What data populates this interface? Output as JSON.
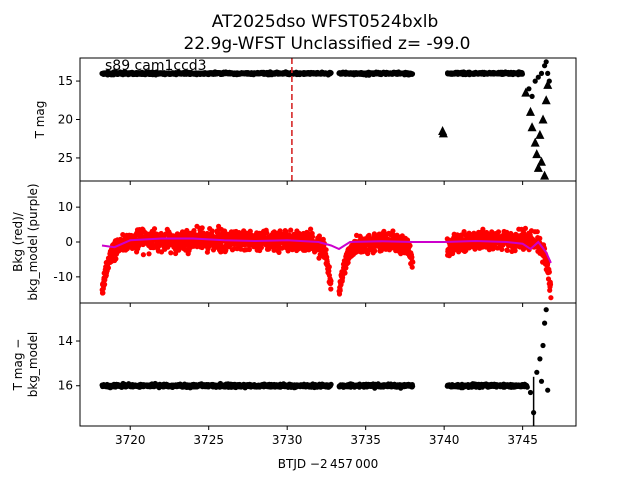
{
  "title_line1": "AT2025dso  WFST0524bxlb",
  "title_line2": "22.9g-WFST Unclassified z= -99.0",
  "annotation": "s89 cam1ccd3",
  "xlabel": "BTJD −2 457 000",
  "colors": {
    "red": "#ff0000",
    "purple": "#cc00cc",
    "black": "#000000",
    "marker_line": "#d62728"
  },
  "chart_data": [
    {
      "type": "scatter",
      "panel": "top",
      "ylabel": "T mag",
      "ylim": [
        28,
        12
      ],
      "yticks": [
        15,
        20,
        25
      ],
      "xlim": [
        3716.8,
        3748.4
      ],
      "vline_x": 3730.3,
      "segments": [
        {
          "x0": 3718.2,
          "x1": 3732.8,
          "y": 14.0,
          "scatter": 0.25
        },
        {
          "x0": 3733.3,
          "x1": 3738.0,
          "y": 14.0,
          "scatter": 0.25
        },
        {
          "x0": 3740.2,
          "x1": 3745.0,
          "y": 14.0,
          "scatter": 0.25
        }
      ],
      "upper_limits": [
        {
          "x": 3739.9,
          "y": 21.5
        },
        {
          "x": 3739.95,
          "y": 21.8
        },
        {
          "x": 3745.2,
          "y": 16.5
        },
        {
          "x": 3745.5,
          "y": 19.0
        },
        {
          "x": 3745.6,
          "y": 21.0
        },
        {
          "x": 3745.8,
          "y": 23.0
        },
        {
          "x": 3745.9,
          "y": 24.5
        },
        {
          "x": 3746.0,
          "y": 26.3
        },
        {
          "x": 3746.1,
          "y": 22.0
        },
        {
          "x": 3746.2,
          "y": 25.5
        },
        {
          "x": 3746.3,
          "y": 20.0
        },
        {
          "x": 3746.4,
          "y": 27.3
        },
        {
          "x": 3746.5,
          "y": 17.5
        },
        {
          "x": 3746.6,
          "y": 15.5
        }
      ],
      "tail_points": [
        {
          "x": 3745.4,
          "y": 16.0
        },
        {
          "x": 3745.6,
          "y": 17.0
        },
        {
          "x": 3745.8,
          "y": 15.0
        },
        {
          "x": 3746.0,
          "y": 14.5
        },
        {
          "x": 3746.2,
          "y": 14.0
        },
        {
          "x": 3746.4,
          "y": 13.0
        },
        {
          "x": 3746.5,
          "y": 12.5
        },
        {
          "x": 3746.6,
          "y": 14.0
        },
        {
          "x": 3746.7,
          "y": 15.0
        }
      ]
    },
    {
      "type": "scatter",
      "panel": "middle",
      "ylabel": "Bkg (red)/\nbkg_model (purple)",
      "ylim": [
        -17.5,
        17.5
      ],
      "yticks": [
        10,
        0,
        -10
      ],
      "xlim": [
        3716.8,
        3748.4
      ],
      "series": [
        {
          "name": "Bkg",
          "color": "#ff0000",
          "segments": [
            {
              "x0": 3718.2,
              "x1": 3732.8,
              "center": 0.5,
              "spread": 5.0,
              "rise_dip": -15.0,
              "end_dip": -14.0
            },
            {
              "x0": 3733.3,
              "x1": 3738.0,
              "center": 0.0,
              "spread": 4.5,
              "rise_dip": -15.0,
              "end_dip": -5.0
            },
            {
              "x0": 3740.2,
              "x1": 3746.8,
              "center": 0.5,
              "spread": 4.5,
              "rise_dip": -3.0,
              "end_dip": -14.0
            }
          ]
        },
        {
          "name": "bkg_model",
          "color": "#cc00cc",
          "x": [
            3718.2,
            3719.0,
            3720.0,
            3722.0,
            3724.0,
            3726.0,
            3728.0,
            3730.0,
            3732.0,
            3732.8,
            3733.3,
            3734.0,
            3736.0,
            3738.0,
            3740.0,
            3742.0,
            3744.0,
            3745.0,
            3745.5,
            3746.0,
            3746.5,
            3746.8
          ],
          "y": [
            -1.0,
            -1.5,
            0.5,
            1.0,
            1.0,
            0.5,
            0.3,
            0.5,
            0.0,
            -1.0,
            -2.0,
            0.0,
            0.2,
            0.0,
            0.0,
            0.3,
            0.0,
            -0.5,
            -2.0,
            0.0,
            -3.0,
            -6.0
          ]
        }
      ]
    },
    {
      "type": "scatter",
      "panel": "bottom",
      "ylabel": "T mag −\nbkg_model",
      "ylim": [
        17.8,
        12.3
      ],
      "yticks": [
        14,
        16
      ],
      "xlim": [
        3716.8,
        3748.4
      ],
      "xticks": [
        3720,
        3725,
        3730,
        3735,
        3740,
        3745
      ],
      "segments": [
        {
          "x0": 3718.2,
          "x1": 3732.8,
          "y": 16.0,
          "scatter": 0.12
        },
        {
          "x0": 3733.3,
          "x1": 3738.0,
          "y": 16.0,
          "scatter": 0.12
        },
        {
          "x0": 3740.2,
          "x1": 3745.3,
          "y": 16.0,
          "scatter": 0.12
        }
      ],
      "tail_points": [
        {
          "x": 3745.5,
          "y": 16.3
        },
        {
          "x": 3745.7,
          "y": 17.2
        },
        {
          "x": 3745.9,
          "y": 15.4
        },
        {
          "x": 3746.1,
          "y": 14.8
        },
        {
          "x": 3746.2,
          "y": 15.8
        },
        {
          "x": 3746.3,
          "y": 14.2
        },
        {
          "x": 3746.4,
          "y": 13.2
        },
        {
          "x": 3746.5,
          "y": 12.6
        },
        {
          "x": 3746.6,
          "y": 16.2
        }
      ]
    }
  ]
}
